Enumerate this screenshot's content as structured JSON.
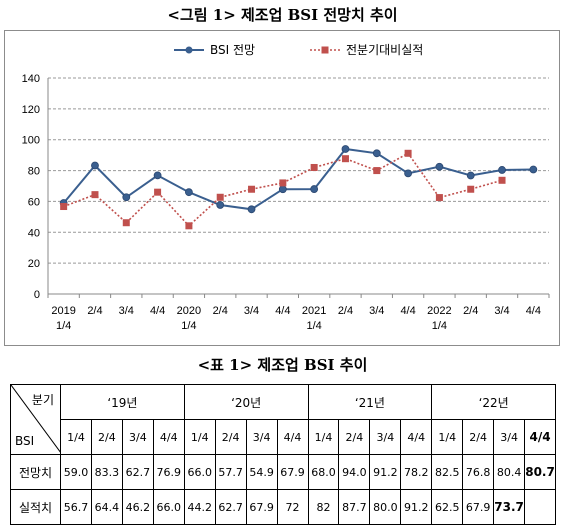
{
  "figure_title": "<그림 1> 제조업 BSI 전망치 추이",
  "table_title": "<표 1> 제조업 BSI 추이",
  "chart_data": {
    "type": "line",
    "categories": [
      [
        "2019",
        "1/4"
      ],
      [
        "2/4"
      ],
      [
        "3/4"
      ],
      [
        "4/4"
      ],
      [
        "2020",
        "1/4"
      ],
      [
        "2/4"
      ],
      [
        "3/4"
      ],
      [
        "4/4"
      ],
      [
        "2021",
        "1/4"
      ],
      [
        "2/4"
      ],
      [
        "3/4"
      ],
      [
        "4/4"
      ],
      [
        "2022",
        "1/4"
      ],
      [
        "2/4"
      ],
      [
        "3/4"
      ],
      [
        "4/4"
      ]
    ],
    "series": [
      {
        "name": "BSI 전망",
        "color": "#3a5f8f",
        "marker": "circle",
        "line": "solid",
        "values": [
          59.0,
          83.3,
          62.7,
          76.9,
          66.0,
          57.7,
          54.9,
          67.9,
          68.0,
          94.0,
          91.2,
          78.2,
          82.5,
          76.8,
          80.4,
          80.7
        ]
      },
      {
        "name": "전분기대비실적",
        "color": "#c0504d",
        "marker": "square",
        "line": "dotted",
        "values": [
          56.7,
          64.4,
          46.2,
          66.0,
          44.2,
          62.7,
          67.9,
          72,
          82,
          87.7,
          80.0,
          91.2,
          62.5,
          67.9,
          73.7,
          null
        ]
      }
    ],
    "ylim": [
      0,
      140
    ],
    "yticks": [
      0,
      20,
      40,
      60,
      80,
      100,
      120,
      140
    ],
    "grid": true,
    "legend": "top-center"
  },
  "table": {
    "corner_top": "분기",
    "corner_bottom": "BSI",
    "years": [
      "‘19년",
      "‘20년",
      "‘21년",
      "‘22년"
    ],
    "quarters": [
      "1/4",
      "2/4",
      "3/4",
      "4/4"
    ],
    "rows": [
      {
        "label": "전망치",
        "values": [
          "59.0",
          "83.3",
          "62.7",
          "76.9",
          "66.0",
          "57.7",
          "54.9",
          "67.9",
          "68.0",
          "94.0",
          "91.2",
          "78.2",
          "82.5",
          "76.8",
          "80.4",
          "80.7"
        ]
      },
      {
        "label": "실적치",
        "values": [
          "56.7",
          "64.4",
          "46.2",
          "66.0",
          "44.2",
          "62.7",
          "67.9",
          "72",
          "82",
          "87.7",
          "80.0",
          "91.2",
          "62.5",
          "67.9",
          "73.7",
          ""
        ]
      }
    ]
  }
}
